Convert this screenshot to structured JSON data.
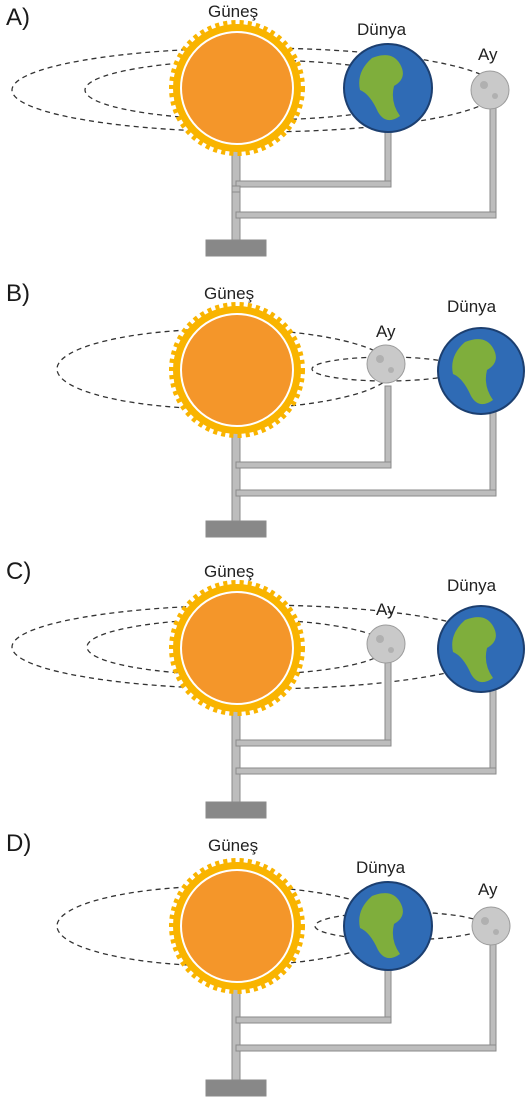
{
  "labels": {
    "sun": "Güneş",
    "earth": "Dünya",
    "moon": "Ay"
  },
  "colors": {
    "sun": "#f4962a",
    "sun_rays": "#f9b400",
    "earth_ocean": "#2f6bb5",
    "earth_land": "#7fae3c",
    "moon": "#c9c9c9",
    "rod": "#9a9a9a",
    "orbit": "#333333"
  },
  "options": [
    {
      "letter": "A)",
      "arrangement": "Sun center; Earth and Moon both orbit the Sun (Moon on outer orbit)"
    },
    {
      "letter": "B)",
      "arrangement": "Sun orbits Earth? Moon between Sun and Earth; Sun orbit around and small orbit between Moon and Earth"
    },
    {
      "letter": "C)",
      "arrangement": "Sun center; Moon on inner orbit, Earth on outer orbit"
    },
    {
      "letter": "D)",
      "arrangement": "Sun center; Earth orbits Sun, Moon orbits Earth"
    }
  ]
}
